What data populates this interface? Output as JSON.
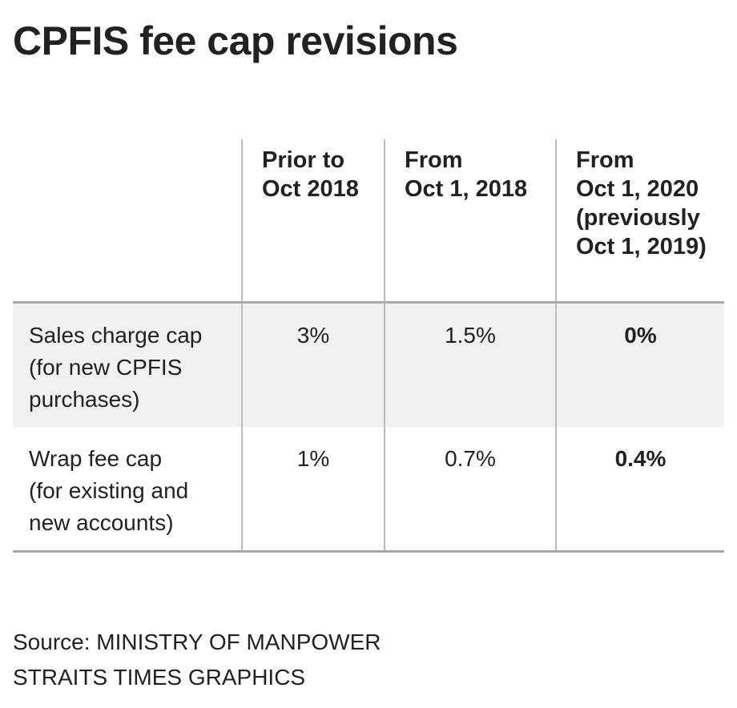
{
  "title": "CPFIS fee cap revisions",
  "table": {
    "headers": [
      "",
      "Prior to\nOct 2018",
      "From\nOct 1, 2018",
      "From\nOct 1, 2020\n(previously\nOct 1, 2019)"
    ],
    "rows": [
      {
        "label": "Sales charge cap\n(for new CPFIS\npurchases)",
        "values": [
          "3%",
          "1.5%",
          "0%"
        ]
      },
      {
        "label": "Wrap fee cap\n(for existing and\nnew accounts)",
        "values": [
          "1%",
          "0.7%",
          "0.4%"
        ]
      }
    ]
  },
  "source": "Source: MINISTRY OF MANPOWER",
  "credit": "STRAITS TIMES GRAPHICS"
}
